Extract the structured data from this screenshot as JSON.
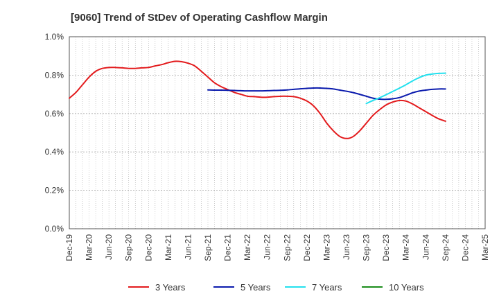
{
  "chart_data": {
    "type": "line",
    "title": "[9060]  Trend of StDev of Operating Cashflow Margin",
    "xlabel": "",
    "ylabel": "",
    "x_ticks": [
      "Dec-19",
      "Mar-20",
      "Jun-20",
      "Sep-20",
      "Dec-20",
      "Mar-21",
      "Jun-21",
      "Sep-21",
      "Dec-21",
      "Mar-22",
      "Jun-22",
      "Sep-22",
      "Dec-22",
      "Mar-23",
      "Jun-23",
      "Sep-23",
      "Dec-23",
      "Mar-24",
      "Jun-24",
      "Sep-24",
      "Dec-24",
      "Mar-25"
    ],
    "y_ticks": [
      "0.0%",
      "0.2%",
      "0.4%",
      "0.6%",
      "0.8%",
      "1.0%"
    ],
    "ylim": [
      0,
      1.0
    ],
    "y_unit": "%",
    "grid": true,
    "legend_position": "bottom",
    "series": [
      {
        "name": "3 Years",
        "color": "#e31a1c",
        "x": [
          "Dec-19",
          "Jan-20",
          "Feb-20",
          "Mar-20",
          "Apr-20",
          "May-20",
          "Jun-20",
          "Jul-20",
          "Aug-20",
          "Sep-20",
          "Oct-20",
          "Nov-20",
          "Dec-20",
          "Jan-21",
          "Feb-21",
          "Mar-21",
          "Apr-21",
          "May-21",
          "Jun-21",
          "Jul-21",
          "Aug-21",
          "Sep-21",
          "Oct-21",
          "Nov-21",
          "Dec-21",
          "Jan-22",
          "Feb-22",
          "Mar-22",
          "Apr-22",
          "May-22",
          "Jun-22",
          "Jul-22",
          "Aug-22",
          "Sep-22",
          "Oct-22",
          "Nov-22",
          "Dec-22",
          "Jan-23",
          "Feb-23",
          "Mar-23",
          "Apr-23",
          "May-23",
          "Jun-23",
          "Jul-23",
          "Aug-23",
          "Sep-23",
          "Oct-23",
          "Nov-23",
          "Dec-23",
          "Jan-24",
          "Feb-24",
          "Mar-24",
          "Apr-24",
          "May-24",
          "Jun-24",
          "Jul-24",
          "Aug-24",
          "Sep-24"
        ],
        "values": [
          0.68,
          0.71,
          0.75,
          0.79,
          0.82,
          0.835,
          0.84,
          0.84,
          0.838,
          0.835,
          0.835,
          0.838,
          0.84,
          0.848,
          0.855,
          0.865,
          0.872,
          0.87,
          0.862,
          0.848,
          0.82,
          0.79,
          0.76,
          0.74,
          0.725,
          0.71,
          0.7,
          0.69,
          0.688,
          0.685,
          0.685,
          0.688,
          0.69,
          0.69,
          0.688,
          0.68,
          0.665,
          0.64,
          0.6,
          0.55,
          0.51,
          0.48,
          0.47,
          0.48,
          0.51,
          0.55,
          0.59,
          0.62,
          0.645,
          0.66,
          0.668,
          0.665,
          0.65,
          0.63,
          0.61,
          0.59,
          0.572,
          0.56
        ]
      },
      {
        "name": "5 Years",
        "color": "#0a1aad",
        "x": [
          "Sep-21",
          "Oct-21",
          "Nov-21",
          "Dec-21",
          "Jan-22",
          "Feb-22",
          "Mar-22",
          "Apr-22",
          "May-22",
          "Jun-22",
          "Jul-22",
          "Aug-22",
          "Sep-22",
          "Oct-22",
          "Nov-22",
          "Dec-22",
          "Jan-23",
          "Feb-23",
          "Mar-23",
          "Apr-23",
          "May-23",
          "Jun-23",
          "Jul-23",
          "Aug-23",
          "Sep-23",
          "Oct-23",
          "Nov-23",
          "Dec-23",
          "Jan-24",
          "Feb-24",
          "Mar-24",
          "Apr-24",
          "May-24",
          "Jun-24",
          "Jul-24",
          "Aug-24",
          "Sep-24"
        ],
        "values": [
          0.723,
          0.722,
          0.722,
          0.721,
          0.72,
          0.719,
          0.718,
          0.718,
          0.718,
          0.719,
          0.72,
          0.721,
          0.723,
          0.726,
          0.729,
          0.731,
          0.733,
          0.733,
          0.731,
          0.728,
          0.722,
          0.716,
          0.709,
          0.7,
          0.69,
          0.68,
          0.675,
          0.674,
          0.677,
          0.683,
          0.695,
          0.708,
          0.717,
          0.722,
          0.726,
          0.728,
          0.728
        ]
      },
      {
        "name": "7 Years",
        "color": "#22e0ee",
        "x": [
          "Sep-23",
          "Oct-23",
          "Nov-23",
          "Dec-23",
          "Jan-24",
          "Feb-24",
          "Mar-24",
          "Apr-24",
          "May-24",
          "Jun-24",
          "Jul-24",
          "Aug-24",
          "Sep-24"
        ],
        "values": [
          0.652,
          0.668,
          0.682,
          0.698,
          0.715,
          0.732,
          0.75,
          0.77,
          0.787,
          0.8,
          0.806,
          0.809,
          0.81
        ]
      },
      {
        "name": "10 Years",
        "color": "#1a8c1a",
        "x": [],
        "values": []
      }
    ]
  }
}
